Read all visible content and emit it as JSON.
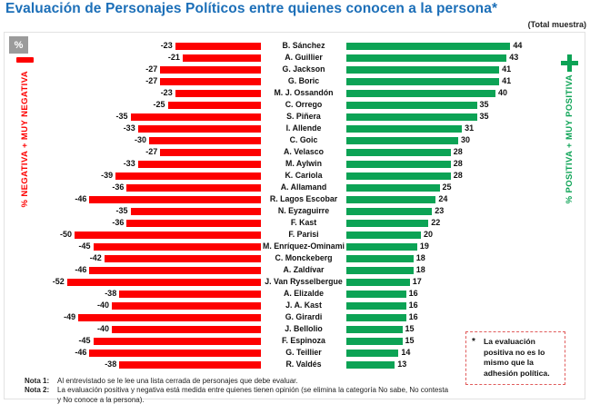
{
  "header": {
    "title": "Evaluación de Personajes Políticos entre quienes conocen a la persona*",
    "sample_note": "(Total muestra)"
  },
  "axes": {
    "percent_symbol": "%",
    "left_label": "% NEGATIVA + MUY NEGATIVA",
    "right_label": "% POSITIVA + MUY POSITIVA"
  },
  "icons": {
    "left": "minus-icon",
    "right": "plus-icon"
  },
  "colors": {
    "negative_red": "#fd0000",
    "positive_green": "#0ca355",
    "title_blue": "#1c6fb8",
    "percent_box_gray": "#9b9b9b"
  },
  "chart_data": {
    "type": "bar",
    "orientation": "horizontal-diverging",
    "title": "Evaluación de Personajes Políticos entre quienes conocen a la persona*",
    "categories": [
      "B. Sánchez",
      "A. Guillier",
      "G. Jackson",
      "G. Boric",
      "M. J. Ossandón",
      "C. Orrego",
      "S. Piñera",
      "I. Allende",
      "C. Goic",
      "A. Velasco",
      "M. Aylwin",
      "K. Cariola",
      "A. Allamand",
      "R. Lagos Escobar",
      "N. Eyzaguirre",
      "F. Kast",
      "F. Parisi",
      "M. Enríquez-Ominami",
      "C. Monckeberg",
      "A. Zaldívar",
      "J. Van Rysselbergue",
      "A. Elizalde",
      "J. A. Kast",
      "G. Girardi",
      "J. Bellolio",
      "F. Espinoza",
      "G. Teillier",
      "R. Valdés"
    ],
    "series": [
      {
        "name": "% Negativa + Muy Negativa",
        "color": "#fd0000",
        "values": [
          -23,
          -21,
          -27,
          -27,
          -23,
          -25,
          -35,
          -33,
          -30,
          -27,
          -33,
          -39,
          -36,
          -46,
          -35,
          -36,
          -50,
          -45,
          -42,
          -46,
          -52,
          -38,
          -40,
          -49,
          -40,
          -45,
          -46,
          -38
        ]
      },
      {
        "name": "% Positiva + Muy Positiva",
        "color": "#0ca355",
        "values": [
          44,
          43,
          41,
          41,
          40,
          35,
          35,
          31,
          30,
          28,
          28,
          28,
          25,
          24,
          23,
          22,
          20,
          19,
          18,
          18,
          17,
          16,
          16,
          16,
          15,
          15,
          14,
          13
        ]
      }
    ],
    "xlim": [
      -70,
      65
    ],
    "grid": false,
    "legend_position": "vertical-side-labels"
  },
  "annotation": {
    "bullet": "*",
    "text": "La evaluación positiva no es lo mismo que la adhesión política."
  },
  "footnotes": [
    {
      "label": "Nota 1:",
      "text": "Al entrevistado se le lee una lista cerrada de personajes que debe evaluar."
    },
    {
      "label": "Nota 2:",
      "text": "La evaluación positiva y negativa está medida entre quienes tienen opinión (se elimina la categoría No sabe, No contesta y No conoce a la persona)."
    }
  ]
}
